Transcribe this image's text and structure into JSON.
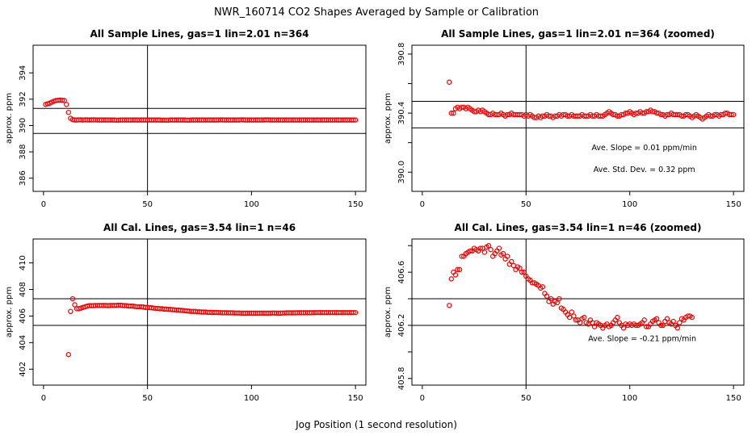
{
  "figure": {
    "title": "NWR_160714  CO2 Shapes Averaged by Sample or Calibration",
    "xlabel": "Jog Position (1 second resolution)"
  },
  "chart_data": [
    {
      "type": "scatter",
      "title": "All Sample Lines, gas=1 lin=2.01 n=364",
      "xlabel": "",
      "ylabel": "approx. ppm",
      "xlim": [
        -5,
        155
      ],
      "ylim": [
        385,
        396.1
      ],
      "xticks": [
        0,
        50,
        100,
        150
      ],
      "xtick_labels": [
        "0",
        "50",
        "100",
        "150"
      ],
      "yticks": [
        386,
        388,
        390,
        392,
        394
      ],
      "ytick_labels": [
        "386",
        "388",
        "390",
        "392",
        "394"
      ],
      "hlines": [
        391.3,
        389.4
      ],
      "vlines": [
        50
      ],
      "annotations": [],
      "point_color": "#ee0000",
      "series": [
        {
          "name": "sample",
          "x_start": 1,
          "x_step": 1,
          "y": [
            391.6,
            391.65,
            391.7,
            391.78,
            391.85,
            391.9,
            391.92,
            391.93,
            391.92,
            391.9,
            391.6,
            391.0,
            390.55,
            390.45,
            390.42,
            390.42,
            390.43,
            390.43,
            390.42,
            390.43,
            390.43,
            390.42,
            390.43,
            390.43,
            390.43,
            390.42,
            390.42,
            390.42,
            390.42,
            390.42,
            390.42,
            390.42,
            390.42,
            390.42,
            390.41,
            390.41,
            390.42,
            390.42,
            390.42,
            390.42,
            390.42,
            390.42,
            390.42,
            390.42,
            390.42,
            390.42,
            390.42,
            390.42,
            390.42,
            390.42,
            390.42,
            390.42,
            390.42,
            390.42,
            390.42,
            390.42,
            390.41,
            390.41,
            390.41,
            390.41,
            390.42,
            390.42,
            390.42,
            390.42,
            390.42,
            390.42,
            390.42,
            390.42,
            390.41,
            390.41,
            390.42,
            390.42,
            390.42,
            390.42,
            390.42,
            390.42,
            390.42,
            390.42,
            390.42,
            390.42,
            390.42,
            390.42,
            390.42,
            390.42,
            390.43,
            390.43,
            390.42,
            390.42,
            390.42,
            390.42,
            390.42,
            390.42,
            390.42,
            390.42,
            390.43,
            390.43,
            390.42,
            390.42,
            390.42,
            390.42,
            390.42,
            390.42,
            390.42,
            390.42,
            390.42,
            390.42,
            390.43,
            390.43,
            390.42,
            390.42,
            390.42,
            390.42,
            390.42,
            390.42,
            390.42,
            390.42,
            390.42,
            390.42,
            390.42,
            390.42,
            390.42,
            390.42,
            390.42,
            390.42,
            390.42,
            390.42,
            390.42,
            390.42,
            390.42,
            390.42,
            390.42,
            390.42,
            390.42,
            390.42,
            390.42,
            390.42,
            390.42,
            390.42,
            390.42,
            390.42,
            390.42,
            390.42,
            390.42,
            390.42,
            390.42,
            390.42,
            390.42,
            390.42,
            390.42,
            390.42
          ]
        }
      ]
    },
    {
      "type": "scatter",
      "title": "All Sample Lines, gas=1 lin=2.01 n=364 (zoomed)",
      "xlabel": "",
      "ylabel": "approx. ppm",
      "xlim": [
        -5,
        155
      ],
      "ylim": [
        389.87,
        390.86
      ],
      "xticks": [
        0,
        50,
        100,
        150
      ],
      "xtick_labels": [
        "0",
        "50",
        "100",
        "150"
      ],
      "yticks": [
        390.0,
        390.2,
        390.4,
        390.6,
        390.8
      ],
      "ytick_labels": [
        "390.0",
        "",
        "390.4",
        "",
        "390.8"
      ],
      "hlines": [
        390.48,
        390.3
      ],
      "vlines": [
        50
      ],
      "annotations": [
        {
          "text": "Ave. Slope =  0.01  ppm/min",
          "x": 107,
          "y": 390.15
        },
        {
          "text": "Ave. Std. Dev. =  0.32  ppm",
          "x": 107,
          "y": 390.0
        }
      ],
      "point_color": "#ee0000",
      "series": [
        {
          "name": "sample-zoomed",
          "x_start": 13,
          "x_step": 1,
          "y": [
            390.61,
            390.4,
            390.4,
            390.43,
            390.44,
            390.43,
            390.44,
            390.44,
            390.43,
            390.44,
            390.43,
            390.42,
            390.41,
            390.41,
            390.42,
            390.41,
            390.42,
            390.41,
            390.4,
            390.39,
            390.39,
            390.4,
            390.39,
            390.39,
            390.39,
            390.4,
            390.39,
            390.38,
            390.39,
            390.39,
            390.4,
            390.39,
            390.39,
            390.39,
            390.39,
            390.39,
            390.38,
            390.39,
            390.38,
            390.39,
            390.38,
            390.37,
            390.37,
            390.38,
            390.37,
            390.38,
            390.38,
            390.39,
            390.38,
            390.38,
            390.37,
            390.38,
            390.38,
            390.39,
            390.38,
            390.39,
            390.39,
            390.38,
            390.38,
            390.39,
            390.38,
            390.38,
            390.38,
            390.38,
            390.39,
            390.38,
            390.38,
            390.38,
            390.39,
            390.38,
            390.38,
            390.39,
            390.38,
            390.38,
            390.38,
            390.39,
            390.4,
            390.41,
            390.4,
            390.39,
            390.39,
            390.38,
            390.38,
            390.39,
            390.39,
            390.4,
            390.4,
            390.41,
            390.4,
            390.39,
            390.4,
            390.4,
            390.41,
            390.4,
            390.4,
            390.41,
            390.41,
            390.42,
            390.41,
            390.41,
            390.4,
            390.4,
            390.39,
            390.39,
            390.38,
            390.39,
            390.39,
            390.4,
            390.39,
            390.39,
            390.39,
            390.39,
            390.38,
            390.38,
            390.39,
            390.39,
            390.38,
            390.37,
            390.38,
            390.39,
            390.38,
            390.37,
            390.36,
            390.37,
            390.38,
            390.39,
            390.38,
            390.38,
            390.39,
            390.39,
            390.38,
            390.39,
            390.39,
            390.4,
            390.4,
            390.39,
            390.39,
            390.39
          ]
        }
      ]
    },
    {
      "type": "scatter",
      "title": "All Cal. Lines, gas=3.54 lin=1 n=46",
      "xlabel": "",
      "ylabel": "approx. ppm",
      "xlim": [
        -5,
        155
      ],
      "ylim": [
        400.8,
        411.8
      ],
      "xticks": [
        0,
        50,
        100,
        150
      ],
      "xtick_labels": [
        "0",
        "50",
        "100",
        "150"
      ],
      "yticks": [
        402,
        404,
        406,
        408,
        410
      ],
      "ytick_labels": [
        "402",
        "404",
        "406",
        "408",
        "410"
      ],
      "hlines": [
        407.3,
        405.3
      ],
      "vlines": [
        50
      ],
      "annotations": [],
      "point_color": "#ee0000",
      "series": [
        {
          "name": "cal",
          "x_start": 12,
          "x_step": 1,
          "y": [
            403.1,
            406.35,
            407.3,
            406.85,
            406.55,
            406.55,
            406.6,
            406.65,
            406.7,
            406.75,
            406.78,
            406.78,
            406.78,
            406.8,
            406.8,
            406.8,
            406.8,
            406.8,
            406.8,
            406.78,
            406.8,
            406.8,
            406.8,
            406.8,
            406.82,
            406.82,
            406.8,
            406.78,
            406.78,
            406.75,
            406.75,
            406.75,
            406.72,
            406.7,
            406.7,
            406.7,
            406.68,
            406.65,
            406.65,
            406.63,
            406.62,
            406.6,
            406.58,
            406.58,
            406.55,
            406.55,
            406.52,
            406.52,
            406.5,
            406.5,
            406.48,
            406.47,
            406.45,
            406.45,
            406.43,
            406.42,
            406.4,
            406.38,
            406.37,
            406.35,
            406.35,
            406.35,
            406.32,
            406.32,
            406.3,
            406.3,
            406.3,
            406.28,
            406.28,
            406.27,
            406.27,
            406.27,
            406.26,
            406.26,
            406.25,
            406.25,
            406.25,
            406.24,
            406.24,
            406.24,
            406.23,
            406.23,
            406.23,
            406.22,
            406.22,
            406.22,
            406.22,
            406.22,
            406.22,
            406.22,
            406.22,
            406.22,
            406.22,
            406.22,
            406.22,
            406.22,
            406.22,
            406.22,
            406.23,
            406.23,
            406.22,
            406.22,
            406.22,
            406.23,
            406.23,
            406.24,
            406.24,
            406.24,
            406.24,
            406.24,
            406.25,
            406.25,
            406.25,
            406.25,
            406.25,
            406.25,
            406.25,
            406.25,
            406.26,
            406.26,
            406.26,
            406.26,
            406.26,
            406.26,
            406.26,
            406.26,
            406.26,
            406.26,
            406.26,
            406.26,
            406.26,
            406.26,
            406.26,
            406.26,
            406.26,
            406.26,
            406.26,
            406.26,
            406.26
          ]
        }
      ]
    },
    {
      "type": "scatter",
      "title": "All Cal. Lines, gas=3.54 lin=1 n=46 (zoomed)",
      "xlabel": "",
      "ylabel": "approx. ppm",
      "xlim": [
        -5,
        155
      ],
      "ylim": [
        405.75,
        406.85
      ],
      "xticks": [
        0,
        50,
        100,
        150
      ],
      "xtick_labels": [
        "0",
        "50",
        "100",
        "150"
      ],
      "yticks": [
        405.8,
        406.0,
        406.2,
        406.4,
        406.6,
        406.8
      ],
      "ytick_labels": [
        "405.8",
        "",
        "406.2",
        "",
        "406.6",
        ""
      ],
      "hlines": [
        406.4,
        406.2
      ],
      "vlines": [
        50
      ],
      "annotations": [
        {
          "text": "Ave. Slope =  -0.21  ppm/min",
          "x": 106,
          "y": 406.08
        }
      ],
      "point_color": "#ee0000",
      "series": [
        {
          "name": "cal-zoomed",
          "x_start": 13,
          "x_step": 1,
          "y": [
            406.35,
            406.55,
            406.6,
            406.58,
            406.62,
            406.62,
            406.72,
            406.72,
            406.74,
            406.75,
            406.76,
            406.76,
            406.78,
            406.77,
            406.76,
            406.78,
            406.78,
            406.75,
            406.79,
            406.8,
            406.77,
            406.72,
            406.74,
            406.76,
            406.78,
            406.73,
            406.74,
            406.7,
            406.72,
            406.66,
            406.68,
            406.65,
            406.62,
            406.64,
            406.63,
            406.6,
            406.6,
            406.57,
            406.55,
            406.54,
            406.52,
            406.52,
            406.51,
            406.5,
            406.48,
            406.49,
            406.44,
            406.42,
            406.38,
            406.4,
            406.36,
            406.38,
            406.37,
            406.4,
            406.33,
            406.32,
            406.3,
            406.28,
            406.26,
            406.3,
            406.27,
            406.24,
            406.24,
            406.22,
            406.25,
            406.26,
            406.22,
            406.21,
            406.24,
            406.22,
            406.19,
            406.22,
            406.21,
            406.2,
            406.18,
            406.2,
            406.21,
            406.19,
            406.2,
            406.22,
            406.24,
            406.26,
            406.22,
            406.2,
            406.18,
            406.21,
            406.2,
            406.21,
            406.2,
            406.21,
            406.2,
            406.2,
            406.21,
            406.22,
            406.24,
            406.19,
            406.19,
            406.21,
            406.23,
            406.24,
            406.25,
            406.22,
            406.2,
            406.2,
            406.23,
            406.25,
            406.22,
            406.21,
            406.23,
            406.2,
            406.18,
            406.22,
            406.25,
            406.24,
            406.26,
            406.27,
            406.27,
            406.26
          ]
        }
      ]
    }
  ]
}
